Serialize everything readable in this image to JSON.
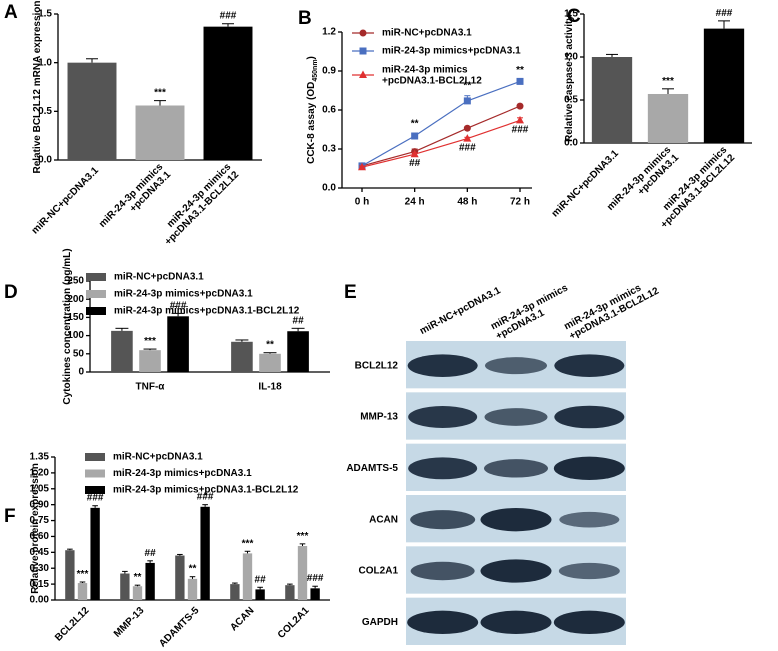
{
  "chart_data": [
    {
      "type": "bar",
      "panel": "A",
      "ylabel": "Relative BCL2L12 mRNA expression",
      "categories": [
        "miR-NC+pcDNA3.1",
        "miR-24-3p mimics\n+pcDNA3.1",
        "miR-24-3p mimics\n+pcDNA3.1-BCL2L12"
      ],
      "values": [
        1.0,
        0.56,
        1.37
      ],
      "errors": [
        0.04,
        0.05,
        0.03
      ],
      "annotations": [
        null,
        "***",
        "###"
      ],
      "colors": [
        "#555555",
        "#a8a8a8",
        "#000000"
      ],
      "ylim": [
        0,
        1.5
      ],
      "yticks": [
        {
          "value": 0,
          "label": "0.0"
        },
        0.5,
        {
          "value": 1,
          "label": "1.0"
        },
        1.5
      ]
    },
    {
      "type": "line",
      "panel": "B",
      "ylabel": "CCK-8 assay (OD",
      "ylabel_subscript": "450nm",
      "ylabel_suffix": ")",
      "categories": [
        "0 h",
        "24 h",
        "48 h",
        "72 h"
      ],
      "series": [
        {
          "name": "miR-NC+pcDNA3.1",
          "color": "#a52a2a",
          "marker": "circle",
          "values": [
            0.17,
            0.28,
            0.46,
            0.63
          ],
          "errors": [
            0.01,
            0.02,
            0.01,
            0.01
          ]
        },
        {
          "name": "miR-24-3p mimics+pcDNA3.1",
          "color": "#4a6fc0",
          "marker": "square",
          "values": [
            0.17,
            0.4,
            0.67,
            0.82
          ],
          "errors": [
            0.01,
            0.02,
            0.04,
            0.01
          ],
          "annotations": [
            null,
            "**",
            "**",
            "**"
          ],
          "annotation_position": "above"
        },
        {
          "name": "miR-24-3p mimics\n+pcDNA3.1-BCL2L12",
          "color": "#e03030",
          "marker": "triangle",
          "values": [
            0.16,
            0.26,
            0.38,
            0.52
          ],
          "errors": [
            0.01,
            0.01,
            0.01,
            0.02
          ],
          "annotations": [
            null,
            "##",
            "###",
            "###"
          ],
          "annotation_position": "below"
        }
      ],
      "ylim": [
        0,
        1.2
      ],
      "yticks": [
        {
          "value": 0,
          "label": "0.0"
        },
        0.3,
        0.6,
        0.9,
        1.2
      ]
    },
    {
      "type": "bar",
      "panel": "C",
      "ylabel": "Relative caspase-3 activity",
      "categories": [
        "miR-NC+pcDNA3.1",
        "miR-24-3p mimics\n+pcDNA3.1",
        "miR-24-3p mimics\n+pcDNA3.1-BCL2L12"
      ],
      "values": [
        1.0,
        0.57,
        1.33
      ],
      "errors": [
        0.03,
        0.06,
        0.09
      ],
      "annotations": [
        null,
        "***",
        "###"
      ],
      "colors": [
        "#555555",
        "#a8a8a8",
        "#000000"
      ],
      "ylim": [
        0,
        1.5
      ],
      "yticks": [
        {
          "value": 0,
          "label": "0.0"
        },
        0.5,
        {
          "value": 1,
          "label": "1.0"
        },
        1.5
      ]
    },
    {
      "type": "grouped_bar",
      "panel": "D",
      "ylabel": "Cytokines concentration (pg/mL)",
      "categories": [
        "TNF-α",
        "IL-18"
      ],
      "series": [
        {
          "name": "miR-NC+pcDNA3.1",
          "color": "#555555",
          "values": [
            113,
            83
          ],
          "errors": [
            7,
            5
          ]
        },
        {
          "name": "miR-24-3p mimics+pcDNA3.1",
          "color": "#a8a8a8",
          "values": [
            60,
            50
          ],
          "errors": [
            3,
            3
          ],
          "annotations": [
            "***",
            "**"
          ]
        },
        {
          "name": "miR-24-3p mimics+pcDNA3.1-BCL2L12",
          "color": "#000000",
          "values": [
            153,
            112
          ],
          "errors": [
            8,
            8
          ],
          "annotations": [
            "###",
            "##"
          ]
        }
      ],
      "ylim": [
        0,
        250
      ],
      "yticks": [
        0,
        50,
        100,
        150,
        200,
        250
      ]
    },
    {
      "type": "blot",
      "panel": "E",
      "lanes": [
        "miR-NC+pcDNA3.1",
        "miR-24-3p mimics\n+pcDNA3.1",
        "miR-24-3p mimics\n+pcDNA3.1-BCL2L12"
      ],
      "proteins": [
        "BCL2L12",
        "MMP-13",
        "ADAMTS-5",
        "ACAN",
        "COL2A1",
        "GAPDH"
      ]
    },
    {
      "type": "grouped_bar",
      "panel": "F",
      "ylabel": "Relative protein expression",
      "categories": [
        "BCL2L12",
        "MMP-13",
        "ADAMTS-5",
        "ACAN",
        "COL2A1"
      ],
      "series": [
        {
          "name": "miR-NC+pcDNA3.1",
          "color": "#555555",
          "values": [
            0.47,
            0.25,
            0.42,
            0.15,
            0.14
          ],
          "errors": [
            0.01,
            0.02,
            0.01,
            0.01,
            0.01
          ]
        },
        {
          "name": "miR-24-3p mimics+pcDNA3.1",
          "color": "#a8a8a8",
          "values": [
            0.16,
            0.13,
            0.2,
            0.44,
            0.51
          ],
          "errors": [
            0.01,
            0.01,
            0.02,
            0.02,
            0.02
          ],
          "annotations": [
            "***",
            "**",
            "**",
            "***",
            "***"
          ]
        },
        {
          "name": "miR-24-3p mimics+pcDNA3.1-BCL2L12",
          "color": "#000000",
          "values": [
            0.87,
            0.35,
            0.88,
            0.1,
            0.11
          ],
          "errors": [
            0.02,
            0.02,
            0.02,
            0.02,
            0.02
          ],
          "annotations": [
            "###",
            "##",
            "###",
            "##",
            "###"
          ]
        }
      ],
      "ylim": [
        0,
        1.35
      ],
      "yticks": [
        {
          "value": 0,
          "label": "0.00"
        },
        0.15,
        {
          "value": 0.3,
          "label": "0.30"
        },
        0.45,
        {
          "value": 0.6,
          "label": "0.60"
        },
        0.75,
        {
          "value": 0.9,
          "label": "0.90"
        },
        1.05,
        {
          "value": 1.2,
          "label": "1.20"
        },
        1.35
      ]
    }
  ]
}
